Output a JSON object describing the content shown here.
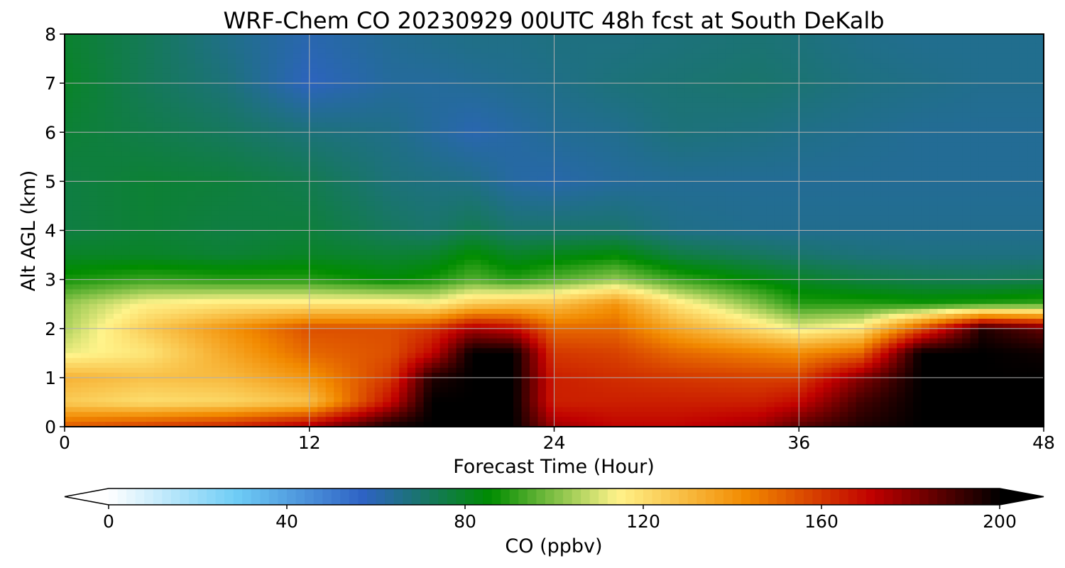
{
  "chart_data": {
    "type": "heatmap",
    "title": "WRF-Chem CO  20230929 00UTC 48h fcst at South DeKalb",
    "xlabel": "Forecast Time (Hour)",
    "ylabel": "Alt AGL (km)",
    "xlim": [
      0,
      48
    ],
    "ylim": [
      0,
      8
    ],
    "xticks": [
      0,
      12,
      24,
      36,
      48
    ],
    "yticks": [
      0,
      1,
      2,
      3,
      4,
      5,
      6,
      7,
      8
    ],
    "grid": true,
    "colorbar": {
      "label": "CO  (ppbv)",
      "range": [
        0,
        200
      ],
      "ticks": [
        0,
        40,
        80,
        120,
        160,
        200
      ],
      "extend": "both"
    },
    "x": [
      0,
      4,
      8,
      12,
      16,
      18,
      20,
      22,
      24,
      27,
      30,
      34,
      36,
      39,
      42,
      45,
      48
    ],
    "y": [
      0.05,
      0.5,
      1,
      1.5,
      2,
      2.5,
      3,
      3.5,
      4,
      5,
      6,
      7,
      7.8
    ],
    "values": [
      [
        150,
        155,
        160,
        170,
        195,
        200,
        200,
        200,
        175,
        170,
        170,
        175,
        185,
        195,
        200,
        200,
        200
      ],
      [
        125,
        120,
        122,
        128,
        170,
        200,
        200,
        200,
        165,
        165,
        165,
        165,
        170,
        190,
        200,
        200,
        200
      ],
      [
        132,
        128,
        130,
        140,
        160,
        195,
        200,
        200,
        165,
        162,
        160,
        158,
        158,
        180,
        200,
        200,
        200
      ],
      [
        112,
        118,
        135,
        150,
        155,
        170,
        200,
        200,
        160,
        158,
        150,
        145,
        142,
        150,
        200,
        200,
        198
      ],
      [
        105,
        125,
        140,
        155,
        155,
        160,
        175,
        170,
        150,
        150,
        135,
        120,
        112,
        118,
        155,
        195,
        185
      ],
      [
        102,
        115,
        118,
        118,
        118,
        115,
        125,
        128,
        128,
        140,
        118,
        100,
        90,
        90,
        88,
        90,
        92
      ],
      [
        88,
        92,
        90,
        90,
        85,
        88,
        95,
        90,
        95,
        102,
        92,
        84,
        80,
        76,
        74,
        73,
        74
      ],
      [
        80,
        80,
        78,
        80,
        78,
        79,
        86,
        80,
        82,
        85,
        76,
        72,
        70,
        68,
        67,
        67,
        67
      ],
      [
        76,
        78,
        76,
        77,
        72,
        70,
        74,
        70,
        70,
        70,
        66,
        65,
        65,
        65,
        65,
        65,
        65
      ],
      [
        76,
        78,
        77,
        74,
        68,
        67,
        66,
        62,
        61,
        63,
        64,
        64,
        64,
        64,
        64,
        64,
        64
      ],
      [
        78,
        75,
        72,
        68,
        66,
        63,
        60,
        62,
        64,
        65,
        68,
        67,
        66,
        65,
        64,
        64,
        64
      ],
      [
        80,
        73,
        68,
        58,
        63,
        63,
        64,
        65,
        66,
        68,
        69,
        70,
        69,
        67,
        66,
        65,
        65
      ],
      [
        79,
        73,
        66,
        60,
        64,
        65,
        66,
        66,
        67,
        67,
        68,
        69,
        68,
        66,
        65,
        65,
        65
      ]
    ],
    "colors": [
      "#ffffff",
      "#6fcdf6",
      "#2e62c4",
      "#008c00",
      "#fff38a",
      "#f28a00",
      "#c00000",
      "#000000"
    ]
  }
}
